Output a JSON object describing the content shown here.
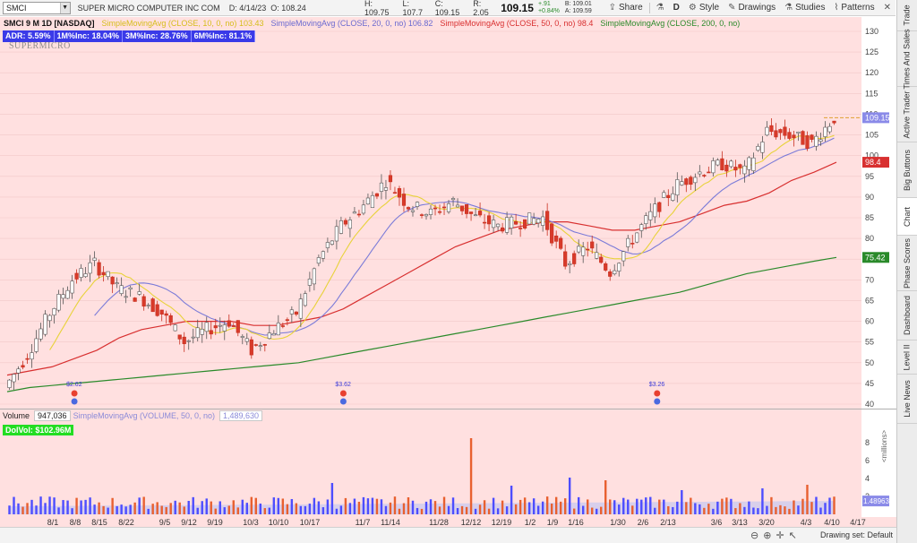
{
  "toolbar": {
    "symbol": "SMCI",
    "company": "SUPER MICRO COMPUTER INC COM",
    "date": "D: 4/14/23",
    "open": "O: 108.24",
    "high": "H: 109.75",
    "low": "L: 107.7",
    "close": "C: 109.15",
    "range": "R: 2.05",
    "last": "109.15",
    "change": "+.91",
    "change_pct": "+0.84%",
    "bid": "B: 109.01",
    "ask": "A: 109.59",
    "share_label": "Share",
    "period_label": "D",
    "style_label": "Style",
    "drawings_label": "Drawings",
    "studies_label": "Studies",
    "patterns_label": "Patterns",
    "icons": {
      "dropdown": "chevron-down-icon",
      "share": "share-icon",
      "flask": "flask-icon",
      "style": "style-icon",
      "drawings": "pencil-icon",
      "studies": "studies-icon",
      "patterns": "patterns-icon",
      "close": "close-icon"
    }
  },
  "studies": {
    "symbol_label": "SMCI 9 M 1D [NASDAQ]",
    "sma10": {
      "label": "SimpleMovingAvg (CLOSE, 10, 0, no)",
      "value": "103.43",
      "color": "#e8d23a"
    },
    "sma20": {
      "label": "SimpleMovingAvg (CLOSE, 20, 0, no)",
      "value": "106.82",
      "color": "#7b7bd8"
    },
    "sma50": {
      "label": "SimpleMovingAvg (CLOSE, 50, 0, no)",
      "value": "98.4",
      "color": "#d83030"
    },
    "sma200": {
      "label": "SimpleMovingAvg (CLOSE, 200, 0, no)",
      "value": "",
      "color": "#2a8a2a"
    }
  },
  "stats": {
    "adr": "ADR: 5.59%",
    "m1": "1M%Inc: 18.04%",
    "m3": "3M%Inc: 28.76%",
    "m6": "6M%Inc: 81.1%"
  },
  "logo_text": "SUPERMICRO",
  "price_axis": {
    "ticks": [
      130,
      125,
      120,
      115,
      110,
      105,
      100,
      95,
      90,
      85,
      80,
      75,
      70,
      65,
      60,
      55,
      50,
      45,
      40
    ],
    "min": 40,
    "max": 130,
    "last_label": "109.15",
    "sma50_label": "98.4",
    "sma200_label": "75.42"
  },
  "dividends": [
    {
      "label": "$2.62"
    },
    {
      "label": "$3.62"
    },
    {
      "label": "$3.26"
    }
  ],
  "volume": {
    "title": "Volume",
    "value": "947,036",
    "sma_label": "SimpleMovingAvg (VOLUME, 50, 0, no)",
    "sma_value": "1,489,630",
    "dolvol": "DolVol: $102.96M",
    "ticks": [
      8,
      6,
      4,
      2
    ],
    "unit_label": "<millions>",
    "sma_axis_label": "1.48963"
  },
  "x_axis": {
    "labels": [
      "8/1",
      "8/8",
      "8/15",
      "8/22",
      "9/5",
      "9/12",
      "9/19",
      "10/3",
      "10/10",
      "10/17",
      "11/7",
      "11/14",
      "11/28",
      "12/12",
      "12/19",
      "1/2",
      "1/9",
      "1/16",
      "1/30",
      "2/6",
      "2/13",
      "3/6",
      "3/13",
      "3/20",
      "4/3",
      "4/10",
      "4/17"
    ]
  },
  "bottom_bar": {
    "drawing_set": "Drawing set: Default"
  },
  "sidebar": {
    "tabs": [
      "Trade",
      "Times And Sales",
      "Active Trader",
      "Big Buttons",
      "Chart",
      "Phase Scores",
      "Dashboard",
      "Level II",
      "Live News"
    ]
  },
  "colors": {
    "chart_bg": "#ffe0e0",
    "up_candle": "#ffffff",
    "down_candle": "#d83a2a",
    "vol_up": "#4d4dff",
    "vol_down": "#e86030"
  },
  "chart_data": {
    "type": "candlestick",
    "ylim": [
      40,
      130
    ],
    "x": [
      "7/25",
      "8/1",
      "8/8",
      "8/15",
      "8/22",
      "8/29",
      "9/5",
      "9/12",
      "9/19",
      "9/26",
      "10/3",
      "10/10",
      "10/17",
      "10/24",
      "10/31",
      "11/7",
      "11/14",
      "11/21",
      "11/28",
      "12/5",
      "12/12",
      "12/19",
      "12/26",
      "1/2",
      "1/9",
      "1/16",
      "1/23",
      "1/30",
      "2/6",
      "2/13",
      "2/20",
      "2/27",
      "3/6",
      "3/13",
      "3/20",
      "3/27",
      "4/3",
      "4/10"
    ],
    "weekly_close": [
      44,
      52,
      62,
      70,
      74,
      68,
      66,
      62,
      55,
      58,
      60,
      53,
      58,
      62,
      75,
      83,
      88,
      94,
      88,
      86,
      89,
      85,
      83,
      84,
      85,
      74,
      78,
      72,
      80,
      87,
      93,
      96,
      98,
      96,
      106,
      105,
      103,
      109.15
    ],
    "sma50": [
      47,
      48,
      49,
      51,
      53,
      56,
      58,
      59,
      60,
      60,
      60,
      59,
      59,
      60,
      61,
      63,
      66,
      69,
      72,
      75,
      78,
      80,
      82,
      83,
      84,
      84,
      83,
      82,
      82,
      83,
      84,
      86,
      88,
      89,
      91,
      94,
      96,
      98.4
    ],
    "sma200": [
      43,
      44,
      44.5,
      45,
      45.5,
      46,
      46.5,
      47,
      47.5,
      48,
      48.5,
      49,
      49.5,
      50,
      51,
      52,
      53,
      54,
      55,
      56,
      57,
      58,
      59,
      60,
      61,
      62,
      63,
      64,
      65,
      66,
      67,
      68.5,
      70,
      71.5,
      72.5,
      73.5,
      74.5,
      75.42
    ]
  }
}
